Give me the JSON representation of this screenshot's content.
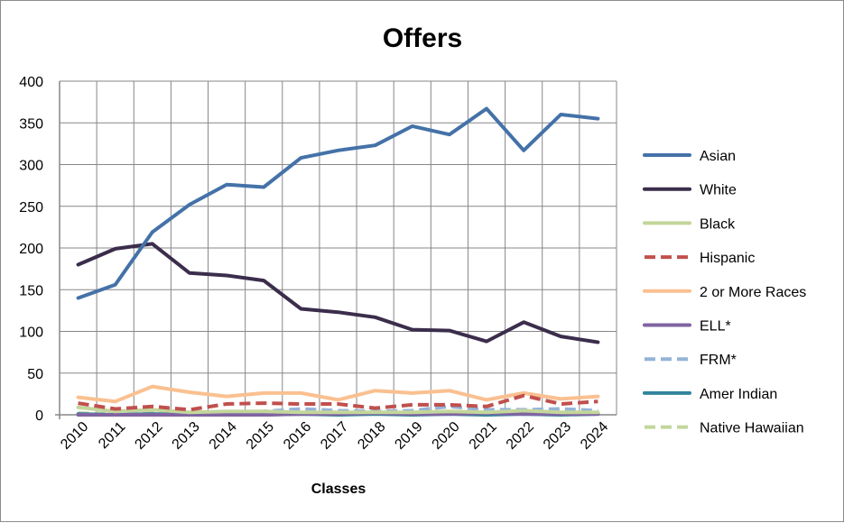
{
  "chart_data": {
    "type": "line",
    "title": "Offers",
    "xlabel": "Classes",
    "ylabel": "",
    "ylim": [
      0,
      400
    ],
    "y_ticks": [
      0,
      50,
      100,
      150,
      200,
      250,
      300,
      350,
      400
    ],
    "grid": true,
    "legend_position": "right",
    "categories": [
      "2010",
      "2011",
      "2012",
      "2013",
      "2014",
      "2015",
      "2016",
      "2017",
      "2018",
      "2019",
      "2020",
      "2021",
      "2022",
      "2023",
      "2024"
    ],
    "series": [
      {
        "name": "Asian",
        "color": "#4472a8",
        "dash": "solid",
        "values": [
          140,
          156,
          219,
          252,
          276,
          273,
          308,
          317,
          323,
          346,
          336,
          367,
          317,
          360,
          355
        ]
      },
      {
        "name": "White",
        "color": "#3b2d4b",
        "dash": "solid",
        "values": [
          180,
          199,
          205,
          170,
          167,
          161,
          127,
          123,
          117,
          102,
          101,
          88,
          111,
          94,
          87
        ]
      },
      {
        "name": "Black",
        "color": "#c3d69b",
        "dash": "solid",
        "values": [
          9,
          4,
          6,
          3,
          4,
          4,
          3,
          3,
          3,
          3,
          4,
          3,
          5,
          3,
          3
        ]
      },
      {
        "name": "Hispanic",
        "color": "#c0504d",
        "dash": "dashed",
        "values": [
          14,
          7,
          10,
          6,
          13,
          14,
          13,
          13,
          8,
          12,
          12,
          10,
          23,
          13,
          16
        ]
      },
      {
        "name": "2 or More Races",
        "color": "#fac090",
        "dash": "solid",
        "values": [
          21,
          16,
          34,
          27,
          22,
          26,
          26,
          18,
          29,
          26,
          29,
          18,
          26,
          19,
          22
        ]
      },
      {
        "name": "ELL*",
        "color": "#8064a2",
        "dash": "solid",
        "values": [
          0,
          0,
          0,
          0,
          0,
          0,
          1,
          1,
          2,
          1,
          1,
          2,
          1,
          1,
          1
        ]
      },
      {
        "name": "FRM*",
        "color": "#95b3d7",
        "dash": "dashed",
        "values": [
          0,
          0,
          0,
          0,
          0,
          4,
          7,
          5,
          4,
          5,
          10,
          6,
          6,
          7,
          5
        ]
      },
      {
        "name": "Amer Indian",
        "color": "#31859c",
        "dash": "solid",
        "values": [
          1,
          0,
          1,
          0,
          1,
          0,
          1,
          0,
          1,
          0,
          1,
          0,
          1,
          0,
          1
        ]
      },
      {
        "name": "Native Hawaiian",
        "color": "#c3d69b",
        "dash": "dashed",
        "values": [
          2,
          1,
          3,
          2,
          2,
          2,
          2,
          2,
          2,
          2,
          2,
          2,
          2,
          2,
          2
        ]
      }
    ]
  }
}
